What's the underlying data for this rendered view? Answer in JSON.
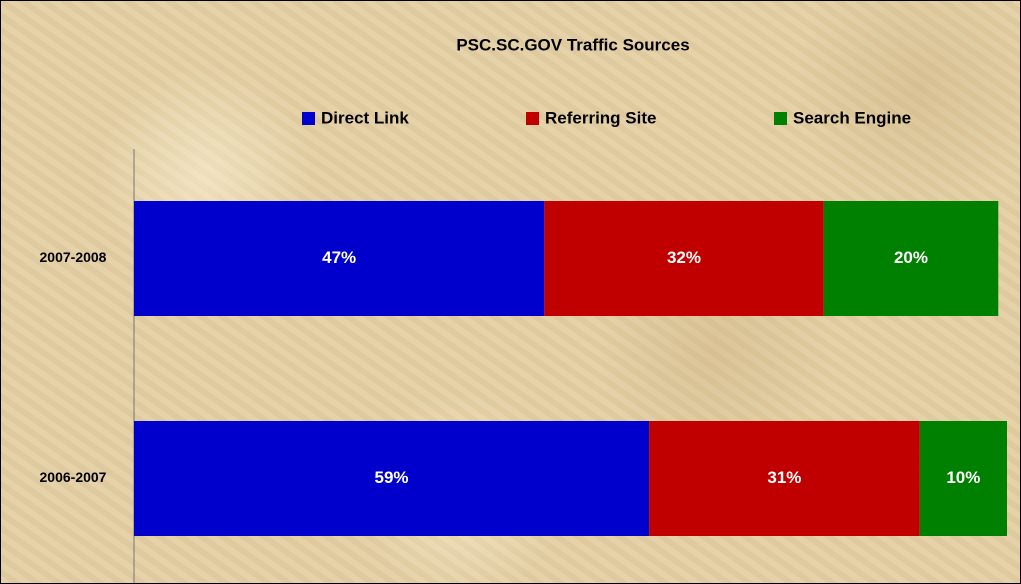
{
  "chart_data": {
    "type": "stacked-bar-horizontal",
    "title": "PSC.SC.GOV Traffic Sources",
    "categories": [
      "2007-2008",
      "2006-2007"
    ],
    "series": [
      {
        "name": "Direct Link",
        "color": "#0000cc",
        "values": [
          47,
          59
        ],
        "value_labels": [
          "47%",
          "59%"
        ]
      },
      {
        "name": "Referring Site",
        "color": "#c00000",
        "values": [
          32,
          31
        ],
        "value_labels": [
          "32%",
          "31%"
        ]
      },
      {
        "name": "Search Engine",
        "color": "#008000",
        "values": [
          20,
          10
        ],
        "value_labels": [
          "20%",
          "10%"
        ]
      }
    ],
    "xlim": [
      0,
      100
    ],
    "legend": "top"
  }
}
